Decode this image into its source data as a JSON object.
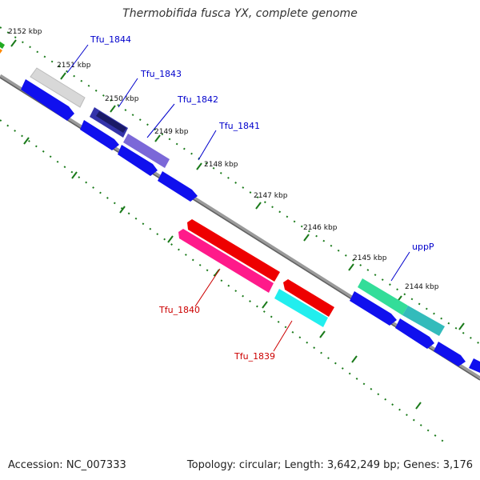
{
  "title": "Thermobifida fusca YX, complete genome",
  "footer": {
    "accession": "Accession: NC_007333",
    "summary": "Topology: circular; Length: 3,642,249 bp; Genes: 3,176"
  },
  "colors": {
    "backbone": "#808080",
    "ruler": "#1a7a1a",
    "forward_label": "#0000cc",
    "reverse_label": "#cc0000"
  },
  "ruler_ticks": [
    {
      "label": "2152 kbp"
    },
    {
      "label": "2151 kbp"
    },
    {
      "label": "2150 kbp"
    },
    {
      "label": "2149 kbp"
    },
    {
      "label": "2148 kbp"
    },
    {
      "label": "2147 kbp"
    },
    {
      "label": "2146 kbp"
    },
    {
      "label": "2145 kbp"
    },
    {
      "label": "2144 kbp"
    }
  ],
  "gene_labels": [
    {
      "name": "Tfu_1844",
      "strand": "forward"
    },
    {
      "name": "Tfu_1843",
      "strand": "forward"
    },
    {
      "name": "Tfu_1842",
      "strand": "forward"
    },
    {
      "name": "Tfu_1841",
      "strand": "forward"
    },
    {
      "name": "uppP",
      "strand": "forward"
    },
    {
      "name": "Tfu_1840",
      "strand": "reverse"
    },
    {
      "name": "Tfu_1839",
      "strand": "reverse"
    }
  ]
}
